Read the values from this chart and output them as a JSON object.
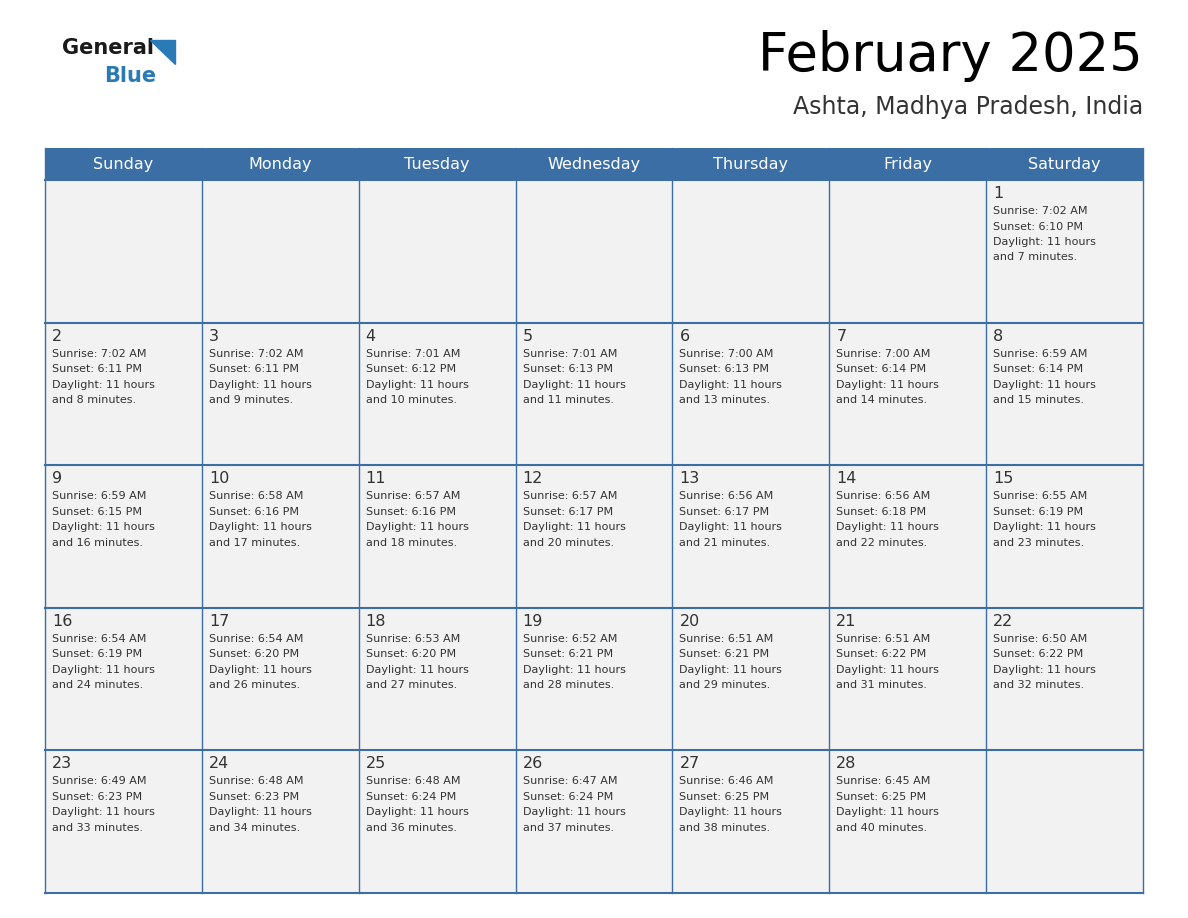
{
  "title": "February 2025",
  "subtitle": "Ashta, Madhya Pradesh, India",
  "days_of_week": [
    "Sunday",
    "Monday",
    "Tuesday",
    "Wednesday",
    "Thursday",
    "Friday",
    "Saturday"
  ],
  "header_bg_color": "#3a6ea5",
  "header_text_color": "#ffffff",
  "cell_bg_color": "#f2f2f2",
  "cell_border_color": "#3a6ea5",
  "day_number_color": "#333333",
  "cell_text_color": "#333333",
  "title_color": "#000000",
  "subtitle_color": "#333333",
  "logo_general_color": "#1a1a1a",
  "logo_blue_color": "#2a7ab5",
  "calendar_data": [
    [
      null,
      null,
      null,
      null,
      null,
      null,
      {
        "day": 1,
        "sunrise": "7:02 AM",
        "sunset": "6:10 PM",
        "daylight": "11 hours and 7 minutes."
      }
    ],
    [
      {
        "day": 2,
        "sunrise": "7:02 AM",
        "sunset": "6:11 PM",
        "daylight": "11 hours and 8 minutes."
      },
      {
        "day": 3,
        "sunrise": "7:02 AM",
        "sunset": "6:11 PM",
        "daylight": "11 hours and 9 minutes."
      },
      {
        "day": 4,
        "sunrise": "7:01 AM",
        "sunset": "6:12 PM",
        "daylight": "11 hours and 10 minutes."
      },
      {
        "day": 5,
        "sunrise": "7:01 AM",
        "sunset": "6:13 PM",
        "daylight": "11 hours and 11 minutes."
      },
      {
        "day": 6,
        "sunrise": "7:00 AM",
        "sunset": "6:13 PM",
        "daylight": "11 hours and 13 minutes."
      },
      {
        "day": 7,
        "sunrise": "7:00 AM",
        "sunset": "6:14 PM",
        "daylight": "11 hours and 14 minutes."
      },
      {
        "day": 8,
        "sunrise": "6:59 AM",
        "sunset": "6:14 PM",
        "daylight": "11 hours and 15 minutes."
      }
    ],
    [
      {
        "day": 9,
        "sunrise": "6:59 AM",
        "sunset": "6:15 PM",
        "daylight": "11 hours and 16 minutes."
      },
      {
        "day": 10,
        "sunrise": "6:58 AM",
        "sunset": "6:16 PM",
        "daylight": "11 hours and 17 minutes."
      },
      {
        "day": 11,
        "sunrise": "6:57 AM",
        "sunset": "6:16 PM",
        "daylight": "11 hours and 18 minutes."
      },
      {
        "day": 12,
        "sunrise": "6:57 AM",
        "sunset": "6:17 PM",
        "daylight": "11 hours and 20 minutes."
      },
      {
        "day": 13,
        "sunrise": "6:56 AM",
        "sunset": "6:17 PM",
        "daylight": "11 hours and 21 minutes."
      },
      {
        "day": 14,
        "sunrise": "6:56 AM",
        "sunset": "6:18 PM",
        "daylight": "11 hours and 22 minutes."
      },
      {
        "day": 15,
        "sunrise": "6:55 AM",
        "sunset": "6:19 PM",
        "daylight": "11 hours and 23 minutes."
      }
    ],
    [
      {
        "day": 16,
        "sunrise": "6:54 AM",
        "sunset": "6:19 PM",
        "daylight": "11 hours and 24 minutes."
      },
      {
        "day": 17,
        "sunrise": "6:54 AM",
        "sunset": "6:20 PM",
        "daylight": "11 hours and 26 minutes."
      },
      {
        "day": 18,
        "sunrise": "6:53 AM",
        "sunset": "6:20 PM",
        "daylight": "11 hours and 27 minutes."
      },
      {
        "day": 19,
        "sunrise": "6:52 AM",
        "sunset": "6:21 PM",
        "daylight": "11 hours and 28 minutes."
      },
      {
        "day": 20,
        "sunrise": "6:51 AM",
        "sunset": "6:21 PM",
        "daylight": "11 hours and 29 minutes."
      },
      {
        "day": 21,
        "sunrise": "6:51 AM",
        "sunset": "6:22 PM",
        "daylight": "11 hours and 31 minutes."
      },
      {
        "day": 22,
        "sunrise": "6:50 AM",
        "sunset": "6:22 PM",
        "daylight": "11 hours and 32 minutes."
      }
    ],
    [
      {
        "day": 23,
        "sunrise": "6:49 AM",
        "sunset": "6:23 PM",
        "daylight": "11 hours and 33 minutes."
      },
      {
        "day": 24,
        "sunrise": "6:48 AM",
        "sunset": "6:23 PM",
        "daylight": "11 hours and 34 minutes."
      },
      {
        "day": 25,
        "sunrise": "6:48 AM",
        "sunset": "6:24 PM",
        "daylight": "11 hours and 36 minutes."
      },
      {
        "day": 26,
        "sunrise": "6:47 AM",
        "sunset": "6:24 PM",
        "daylight": "11 hours and 37 minutes."
      },
      {
        "day": 27,
        "sunrise": "6:46 AM",
        "sunset": "6:25 PM",
        "daylight": "11 hours and 38 minutes."
      },
      {
        "day": 28,
        "sunrise": "6:45 AM",
        "sunset": "6:25 PM",
        "daylight": "11 hours and 40 minutes."
      },
      null
    ]
  ]
}
